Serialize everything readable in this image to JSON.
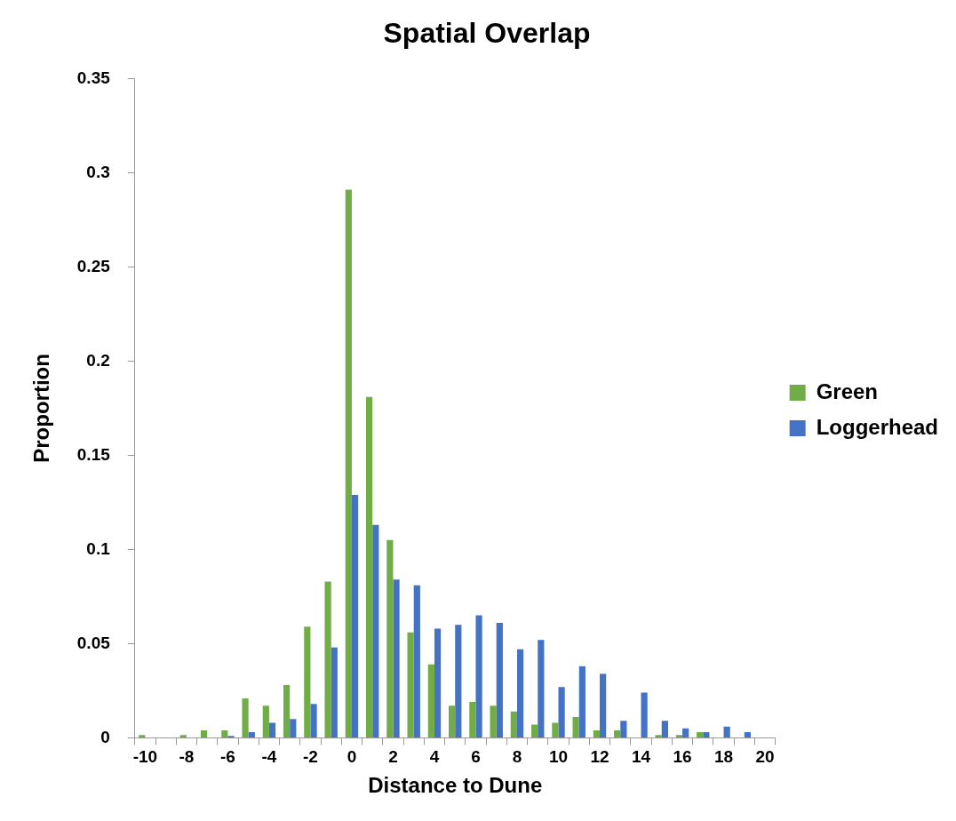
{
  "chart_data": {
    "type": "bar",
    "title": "Spatial Overlap",
    "xlabel": "Distance to Dune",
    "ylabel": "Proportion",
    "categories": [
      "-10",
      null,
      "-8",
      null,
      "-6",
      null,
      "-4",
      null,
      "-2",
      null,
      "0",
      null,
      "2",
      null,
      "4",
      null,
      "6",
      null,
      "8",
      null,
      "10",
      null,
      "12",
      null,
      "14",
      null,
      "16",
      null,
      "18",
      null,
      "20"
    ],
    "series": [
      {
        "name": "Green",
        "color": "#70ad47",
        "values": [
          0.0015,
          0,
          0.0015,
          0.004,
          0.004,
          0.021,
          0.017,
          0.028,
          0.059,
          0.083,
          0.291,
          0.181,
          0.105,
          0.056,
          0.039,
          0.017,
          0.019,
          0.017,
          0.014,
          0.007,
          0.008,
          0.011,
          0.004,
          0.004,
          0,
          0.0015,
          0.0015,
          0.003,
          0,
          0,
          0
        ]
      },
      {
        "name": "Loggerhead",
        "color": "#4472c4",
        "values": [
          0,
          0,
          0,
          0,
          0.001,
          0.003,
          0.008,
          0.01,
          0.018,
          0.048,
          0.129,
          0.113,
          0.084,
          0.081,
          0.058,
          0.06,
          0.065,
          0.061,
          0.047,
          0.052,
          0.027,
          0.038,
          0.034,
          0.009,
          0.024,
          0.009,
          0.005,
          0.003,
          0.006,
          0.003,
          0
        ]
      }
    ],
    "ylim": [
      0,
      0.35
    ],
    "yticks": [
      0,
      0.05,
      0.1,
      0.15,
      0.2,
      0.25,
      0.3,
      0.35
    ],
    "grid": false,
    "legend": "right"
  }
}
